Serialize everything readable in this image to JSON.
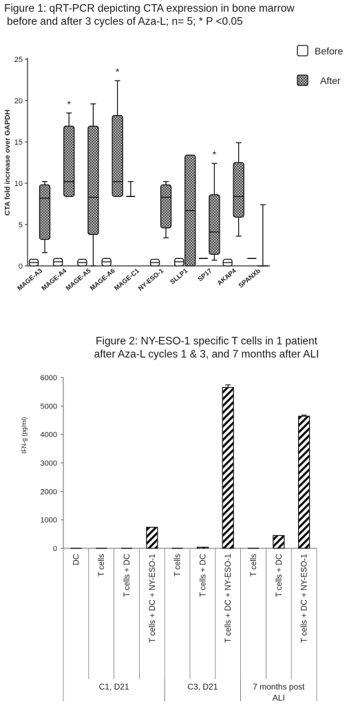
{
  "figure1": {
    "title_line1": "Figure 1: qRT-PCR depicting CTA expression in bone marrow",
    "title_line2": "before and after 3 cycles of Aza-L; n= 5; * P <0.05"
  },
  "figure2": {
    "title_line1": "Figure 2: NY-ESO-1 specific T cells in 1 patient",
    "title_line2": "after Aza-L cycles 1 & 3, and 7 months after ALI"
  },
  "colors": {
    "axis": "#222222",
    "before_fill": "#ffffff",
    "after_fill": "#cfcfcf",
    "bar_hatch": "#111111"
  },
  "chart_data": [
    {
      "type": "box",
      "title": "Figure 1: qRT-PCR depicting CTA expression in bone marrow before and after 3 cycles of Aza-L; n= 5; * P <0.05",
      "ylabel": "CTA fold increase over GAPDH",
      "xlabel": "",
      "ylim": [
        0,
        25
      ],
      "yticks": [
        0,
        5,
        10,
        15,
        20,
        25
      ],
      "grid": false,
      "legend_position": "top-right",
      "categories": [
        "MAGE-A3",
        "MAGE-A4",
        "MAGE-A5",
        "MAGE-A6",
        "MAGE-C1",
        "NY-ESO-1",
        "SLLP1",
        "SP17",
        "AKAP4",
        "SPANXb"
      ],
      "series": [
        {
          "name": "Before",
          "fill": "white",
          "boxes": [
            {
              "min": 0,
              "q1": 0,
              "median": 0.4,
              "q3": 0.8,
              "max": 0.8
            },
            {
              "min": 0,
              "q1": 0,
              "median": 0.5,
              "q3": 0.9,
              "max": 0.9
            },
            {
              "min": 0,
              "q1": 0,
              "median": 0.4,
              "q3": 0.8,
              "max": 0.8
            },
            {
              "min": 0,
              "q1": 0,
              "median": 0.5,
              "q3": 0.9,
              "max": 0.9
            },
            {
              "min": 8.4,
              "q1": 8.4,
              "median": 8.4,
              "q3": 8.4,
              "max": 10.2
            },
            {
              "min": 0,
              "q1": 0,
              "median": 0.4,
              "q3": 0.8,
              "max": 0.8
            },
            {
              "min": 0,
              "q1": 0,
              "median": 0.5,
              "q3": 0.9,
              "max": 0.9
            },
            {
              "min": 0.9,
              "q1": 0.9,
              "median": 0.9,
              "q3": 0.9,
              "max": 0.9
            },
            {
              "min": 0,
              "q1": 0,
              "median": 0.4,
              "q3": 0.8,
              "max": 0.8
            },
            {
              "min": 0.9,
              "q1": 0.9,
              "median": 0.9,
              "q3": 0.9,
              "max": 0.9
            }
          ]
        },
        {
          "name": "After",
          "fill": "crosshatch",
          "boxes": [
            {
              "min": 1.6,
              "q1": 3.2,
              "median": 8.2,
              "q3": 9.8,
              "max": 10.2,
              "significant": false
            },
            {
              "min": 8.4,
              "q1": 8.4,
              "median": 10.2,
              "q3": 16.9,
              "max": 18.5,
              "significant": true
            },
            {
              "min": 0,
              "q1": 3.8,
              "median": 8.3,
              "q3": 16.9,
              "max": 19.6,
              "significant": false
            },
            {
              "min": 8.4,
              "q1": 8.4,
              "median": 10.2,
              "q3": 18.2,
              "max": 22.4,
              "significant": true
            },
            null,
            {
              "min": 3.4,
              "q1": 4.6,
              "median": 8.3,
              "q3": 9.8,
              "max": 10.2,
              "significant": false
            },
            {
              "min": 0,
              "q1": 0,
              "median": 6.7,
              "q3": 13.4,
              "max": 13.4,
              "significant": false
            },
            {
              "min": 0.7,
              "q1": 1.4,
              "median": 4.1,
              "q3": 8.6,
              "max": 12.4,
              "significant": true
            },
            {
              "min": 3.6,
              "q1": 5.9,
              "median": 8.4,
              "q3": 12.5,
              "max": 14.9,
              "significant": false
            },
            {
              "min": 0,
              "q1": 0,
              "median": 0,
              "q3": 0,
              "max": 7.4,
              "significant": false
            }
          ]
        }
      ]
    },
    {
      "type": "bar",
      "title": "Figure 2: NY-ESO-1 specific T cells in 1 patient after Aza-L cycles 1 & 3, and 7 months after ALI",
      "ylabel": "IFN-g (pg/ml)",
      "xlabel": "",
      "ylim": [
        0,
        6000
      ],
      "yticks": [
        0,
        1000,
        2000,
        3000,
        4000,
        5000,
        6000
      ],
      "grid": false,
      "categories": [
        "DC",
        "T cells",
        "T cells + DC",
        "T cells + DC + NY-ESO-1",
        "T cells",
        "T cells + DC",
        "T cells + DC + NY-ESO-1",
        "T cells",
        "T cells + DC",
        "T cells + DC + NY-ESO-1"
      ],
      "values": [
        0,
        0,
        0,
        740,
        0,
        40,
        5650,
        0,
        450,
        4640
      ],
      "errors": [
        0,
        0,
        0,
        0,
        0,
        0,
        90,
        0,
        0,
        40
      ],
      "groups": [
        {
          "label_line1": "C1, D21",
          "label_line2": "",
          "start": 0,
          "end": 3
        },
        {
          "label_line1": "C3, D21",
          "label_line2": "",
          "start": 4,
          "end": 6
        },
        {
          "label_line1": "7 months post",
          "label_line2": "ALI",
          "start": 7,
          "end": 9
        }
      ]
    }
  ]
}
